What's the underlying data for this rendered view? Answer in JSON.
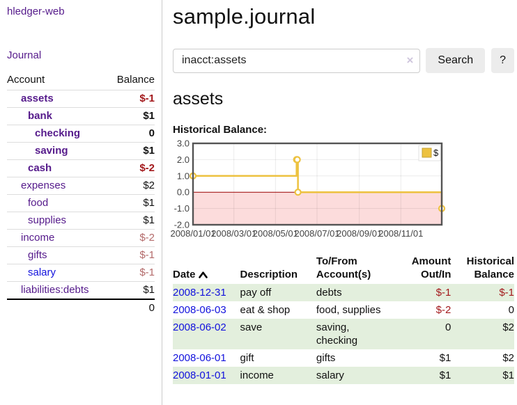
{
  "sidebar": {
    "brand": "hledger-web",
    "nav": {
      "journal": "Journal"
    },
    "accounts_table": {
      "headers": {
        "account": "Account",
        "balance": "Balance"
      },
      "rows": [
        {
          "name": "assets",
          "depth": 1,
          "bold": true,
          "balance": "$-1",
          "neg": "strong",
          "link": "purple"
        },
        {
          "name": "bank",
          "depth": 2,
          "bold": true,
          "balance": "$1",
          "neg": "none",
          "link": "purple"
        },
        {
          "name": "checking",
          "depth": 3,
          "bold": true,
          "balance": "0",
          "neg": "none",
          "link": "purple"
        },
        {
          "name": "saving",
          "depth": 3,
          "bold": true,
          "balance": "$1",
          "neg": "none",
          "link": "purple"
        },
        {
          "name": "cash",
          "depth": 2,
          "bold": true,
          "balance": "$-2",
          "neg": "strong",
          "link": "purple"
        },
        {
          "name": "expenses",
          "depth": 1,
          "bold": false,
          "balance": "$2",
          "neg": "none",
          "link": "purple"
        },
        {
          "name": "food",
          "depth": 2,
          "bold": false,
          "balance": "$1",
          "neg": "none",
          "link": "purple"
        },
        {
          "name": "supplies",
          "depth": 2,
          "bold": false,
          "balance": "$1",
          "neg": "none",
          "link": "purple"
        },
        {
          "name": "income",
          "depth": 1,
          "bold": false,
          "balance": "$-2",
          "neg": "soft",
          "link": "purple"
        },
        {
          "name": "gifts",
          "depth": 2,
          "bold": false,
          "balance": "$-1",
          "neg": "soft",
          "link": "purple"
        },
        {
          "name": "salary",
          "depth": 2,
          "bold": false,
          "balance": "$-1",
          "neg": "soft",
          "link": "blue"
        },
        {
          "name": "liabilities:debts",
          "depth": 1,
          "bold": false,
          "balance": "$1",
          "neg": "none",
          "link": "purple"
        }
      ],
      "total": "0"
    }
  },
  "main": {
    "title": "sample.journal",
    "search": {
      "value": "inacct:assets",
      "clear_icon": "×",
      "button": "Search",
      "help_button": "?"
    },
    "account_heading": "assets",
    "chart_heading": "Historical Balance:"
  },
  "chart_data": {
    "type": "line",
    "step": true,
    "title": "Historical Balance",
    "series": [
      {
        "name": "$",
        "color": "#edc240",
        "points": [
          [
            "2008-01-01",
            1
          ],
          [
            "2008-06-01",
            2
          ],
          [
            "2008-06-02",
            2
          ],
          [
            "2008-06-03",
            0
          ],
          [
            "2008-12-31",
            -1
          ]
        ]
      }
    ],
    "xrange": [
      "2008-01-01",
      "2008-12-31"
    ],
    "ylim": [
      -2,
      3
    ],
    "yticks": [
      3,
      2,
      1,
      0,
      -1,
      -2
    ],
    "ytick_labels": [
      "3.0",
      "2.0",
      "1.0",
      "0.0",
      "-1.0",
      "-2.0"
    ],
    "xticks": [
      "2008-01-01",
      "2008-03-01",
      "2008-05-01",
      "2008-07-01",
      "2008-09-01",
      "2008-11-01"
    ],
    "xtick_labels": [
      "2008/01/01",
      "2008/03/01",
      "2008/05/01",
      "2008/07/01",
      "2008/09/01",
      "2008/11/01"
    ],
    "legend": {
      "label": "$",
      "position": "top-right"
    },
    "colors": {
      "negative_region": "#fcdcdc",
      "zero_line": "#990000",
      "border": "#545454",
      "grid": "rgba(0,0,0,0.08)",
      "tick_text": "#444444"
    }
  },
  "register_table": {
    "headers": {
      "date": "Date",
      "date_sort": "asc",
      "description": "Description",
      "accounts": "To/From Account(s)",
      "amount": "Amount Out/In",
      "balance": "Historical Balance"
    },
    "rows": [
      {
        "date": "2008-12-31",
        "description": "pay off",
        "accounts": "debts",
        "amount": "$-1",
        "amount_neg": true,
        "balance": "$-1",
        "balance_neg": true
      },
      {
        "date": "2008-06-03",
        "description": "eat & shop",
        "accounts": "food, supplies",
        "amount": "$-2",
        "amount_neg": true,
        "balance": "0",
        "balance_neg": false
      },
      {
        "date": "2008-06-02",
        "description": "save",
        "accounts": "saving, checking",
        "amount": "0",
        "amount_neg": false,
        "balance": "$2",
        "balance_neg": false
      },
      {
        "date": "2008-06-01",
        "description": "gift",
        "accounts": "gifts",
        "amount": "$1",
        "amount_neg": false,
        "balance": "$2",
        "balance_neg": false
      },
      {
        "date": "2008-01-01",
        "description": "income",
        "accounts": "salary",
        "amount": "$1",
        "amount_neg": false,
        "balance": "$1",
        "balance_neg": false
      }
    ]
  }
}
